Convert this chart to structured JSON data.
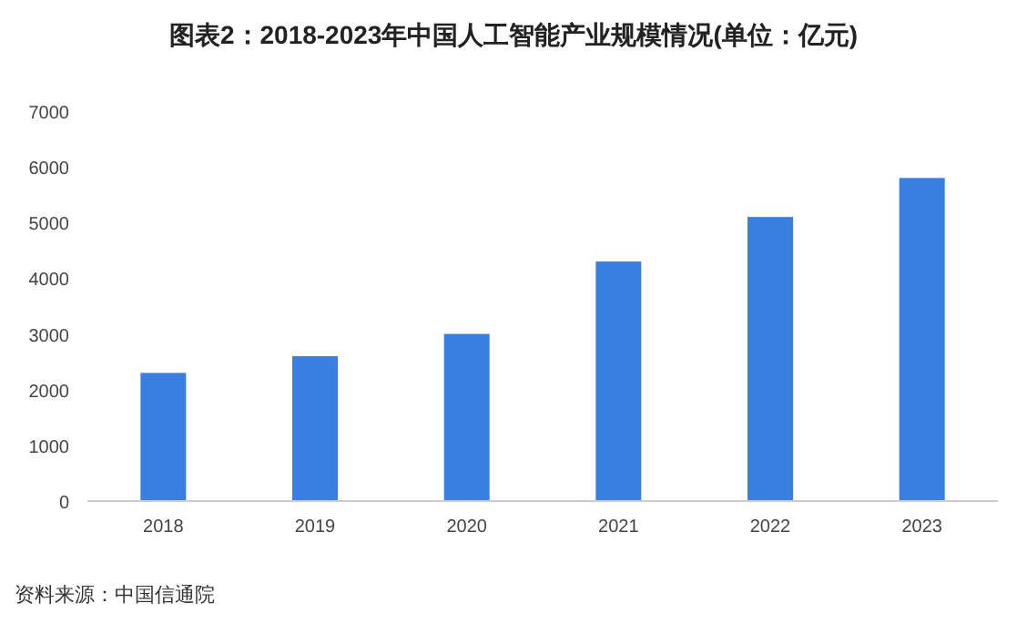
{
  "chart_data": {
    "type": "bar",
    "title": "图表2：2018-2023年中国人工智能产业规模情况(单位：亿元)",
    "categories": [
      "2018",
      "2019",
      "2020",
      "2021",
      "2022",
      "2023"
    ],
    "values": [
      2300,
      2600,
      3000,
      4300,
      5100,
      5800
    ],
    "color": "#3a7fe0",
    "ylim": [
      0,
      7000
    ],
    "yticks": [
      0,
      1000,
      2000,
      3000,
      4000,
      5000,
      6000,
      7000
    ],
    "grid": false,
    "annotations": [
      "资料来源：中国信通院"
    ]
  }
}
